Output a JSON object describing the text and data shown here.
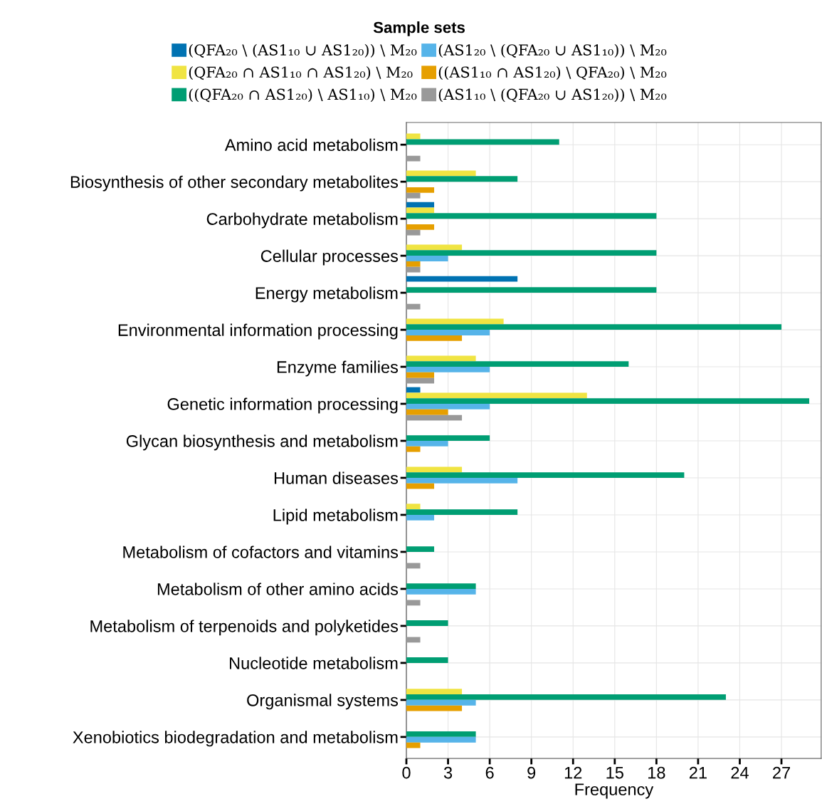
{
  "chart_data": {
    "type": "bar",
    "orientation": "horizontal",
    "xlabel": "Frequency",
    "legend_title": "Sample sets",
    "legend": "top",
    "grid": true,
    "categories": [
      "Amino acid metabolism",
      "Biosynthesis of other secondary metabolites",
      "Carbohydrate metabolism",
      "Cellular processes",
      "Energy metabolism",
      "Environmental information processing",
      "Enzyme families",
      "Genetic information processing",
      "Glycan biosynthesis and metabolism",
      "Human diseases",
      "Lipid metabolism",
      "Metabolism of cofactors and vitamins",
      "Metabolism of other amino acids",
      "Metabolism of terpenoids and polyketides",
      "Nucleotide metabolism",
      "Organismal systems",
      "Xenobiotics biodegradation and metabolism"
    ],
    "xlim": [
      0,
      29.86
    ],
    "xticks": [
      0,
      3,
      6,
      9,
      12,
      15,
      18,
      21,
      24,
      27
    ],
    "series": [
      {
        "name": "(QFA₂₀ \\ (AS1₁₀ ∪ AS1₂₀)) \\ M₂₀",
        "color": "#0072b2",
        "values": [
          null,
          null,
          2,
          null,
          8,
          null,
          null,
          1,
          null,
          null,
          null,
          null,
          null,
          null,
          null,
          null,
          null
        ]
      },
      {
        "name": "(QFA₂₀ ∩ AS1₁₀ ∩ AS1₂₀) \\ M₂₀",
        "color": "#f0e442",
        "values": [
          1,
          5,
          2,
          4,
          null,
          7,
          5,
          13,
          null,
          4,
          1,
          null,
          null,
          null,
          null,
          4,
          null
        ]
      },
      {
        "name": "((QFA₂₀ ∩ AS1₂₀) \\ AS1₁₀) \\ M₂₀",
        "color": "#009e73",
        "values": [
          11,
          8,
          18,
          18,
          18,
          27,
          16,
          29,
          6,
          20,
          8,
          2,
          5,
          3,
          3,
          23,
          5
        ]
      },
      {
        "name": "(AS1₂₀ \\ (QFA₂₀ ∪ AS1₁₀)) \\ M₂₀",
        "color": "#56b4e9",
        "values": [
          null,
          null,
          null,
          3,
          null,
          6,
          6,
          6,
          3,
          8,
          2,
          null,
          5,
          null,
          null,
          5,
          5
        ]
      },
      {
        "name": "((AS1₁₀ ∩ AS1₂₀) \\ QFA₂₀) \\ M₂₀",
        "color": "#e69f00",
        "values": [
          null,
          2,
          2,
          1,
          null,
          4,
          2,
          3,
          1,
          2,
          null,
          null,
          null,
          null,
          null,
          4,
          1
        ]
      },
      {
        "name": "(AS1₁₀ \\ (QFA₂₀ ∪ AS1₂₀)) \\ M₂₀",
        "color": "#999999",
        "values": [
          1,
          1,
          1,
          1,
          1,
          null,
          2,
          4,
          null,
          null,
          null,
          1,
          1,
          1,
          null,
          null,
          null
        ]
      }
    ]
  }
}
